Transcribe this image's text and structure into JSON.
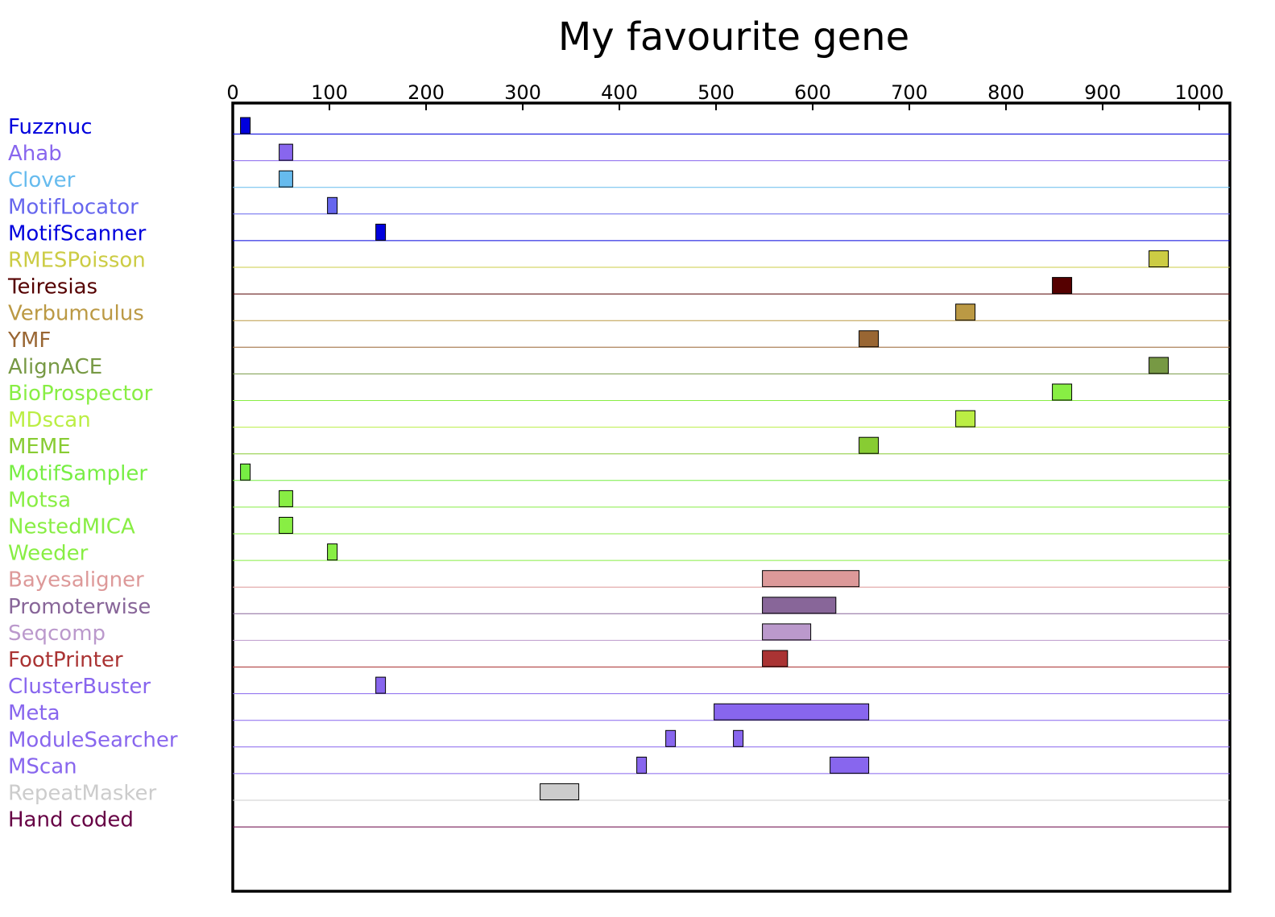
{
  "chart_data": {
    "type": "feature-tracks",
    "title": "My favourite gene",
    "x_axis": {
      "range": [
        0,
        1030
      ],
      "ticks": [
        0,
        100,
        200,
        300,
        400,
        500,
        600,
        700,
        800,
        900,
        1000
      ],
      "position": "top"
    },
    "tracks": [
      {
        "name": "Fuzznuc",
        "color": "#0000dd",
        "features": [
          [
            8,
            18
          ]
        ]
      },
      {
        "name": "Ahab",
        "color": "#8866ee",
        "features": [
          [
            48,
            62
          ]
        ]
      },
      {
        "name": "Clover",
        "color": "#66bbee",
        "features": [
          [
            48,
            62
          ]
        ]
      },
      {
        "name": "MotifLocator",
        "color": "#6666ee",
        "features": [
          [
            98,
            108
          ]
        ]
      },
      {
        "name": "MotifScanner",
        "color": "#0000dd",
        "features": [
          [
            148,
            158
          ]
        ]
      },
      {
        "name": "RMESPoisson",
        "color": "#cccc44",
        "features": [
          [
            948,
            968
          ]
        ]
      },
      {
        "name": "Teiresias",
        "color": "#550000",
        "features": [
          [
            848,
            868
          ]
        ]
      },
      {
        "name": "Verbumculus",
        "color": "#bb9944",
        "features": [
          [
            748,
            768
          ]
        ]
      },
      {
        "name": "YMF",
        "color": "#996633",
        "features": [
          [
            648,
            668
          ]
        ]
      },
      {
        "name": "AlignACE",
        "color": "#779944",
        "features": [
          [
            948,
            968
          ]
        ]
      },
      {
        "name": "BioProspector",
        "color": "#88ee44",
        "features": [
          [
            848,
            868
          ]
        ]
      },
      {
        "name": "MDscan",
        "color": "#bbee44",
        "features": [
          [
            748,
            768
          ]
        ]
      },
      {
        "name": "MEME",
        "color": "#88cc33",
        "features": [
          [
            648,
            668
          ]
        ]
      },
      {
        "name": "MotifSampler",
        "color": "#77ee44",
        "features": [
          [
            8,
            18
          ]
        ]
      },
      {
        "name": "Motsa",
        "color": "#88ee44",
        "features": [
          [
            48,
            62
          ]
        ]
      },
      {
        "name": "NestedMICA",
        "color": "#88ee44",
        "features": [
          [
            48,
            62
          ]
        ]
      },
      {
        "name": "Weeder",
        "color": "#88ee44",
        "features": [
          [
            98,
            108
          ]
        ]
      },
      {
        "name": "Bayesaligner",
        "color": "#dd9999",
        "features": [
          [
            548,
            648
          ]
        ]
      },
      {
        "name": "Promoterwise",
        "color": "#886699",
        "features": [
          [
            548,
            624
          ]
        ]
      },
      {
        "name": "Seqcomp",
        "color": "#bb99cc",
        "features": [
          [
            548,
            598
          ]
        ]
      },
      {
        "name": "FootPrinter",
        "color": "#aa3333",
        "features": [
          [
            548,
            574
          ]
        ]
      },
      {
        "name": "ClusterBuster",
        "color": "#8866ee",
        "features": [
          [
            148,
            158
          ]
        ]
      },
      {
        "name": "Meta",
        "color": "#8866ee",
        "features": [
          [
            498,
            658
          ]
        ]
      },
      {
        "name": "ModuleSearcher",
        "color": "#8866ee",
        "features": [
          [
            448,
            458
          ],
          [
            518,
            528
          ]
        ]
      },
      {
        "name": "MScan",
        "color": "#8866ee",
        "features": [
          [
            418,
            428
          ],
          [
            618,
            658
          ]
        ]
      },
      {
        "name": "RepeatMasker",
        "color": "#cccccc",
        "features": [
          [
            318,
            358
          ]
        ]
      },
      {
        "name": "Hand coded",
        "color": "#660044",
        "features": []
      }
    ],
    "grid": false,
    "legend": "none"
  }
}
